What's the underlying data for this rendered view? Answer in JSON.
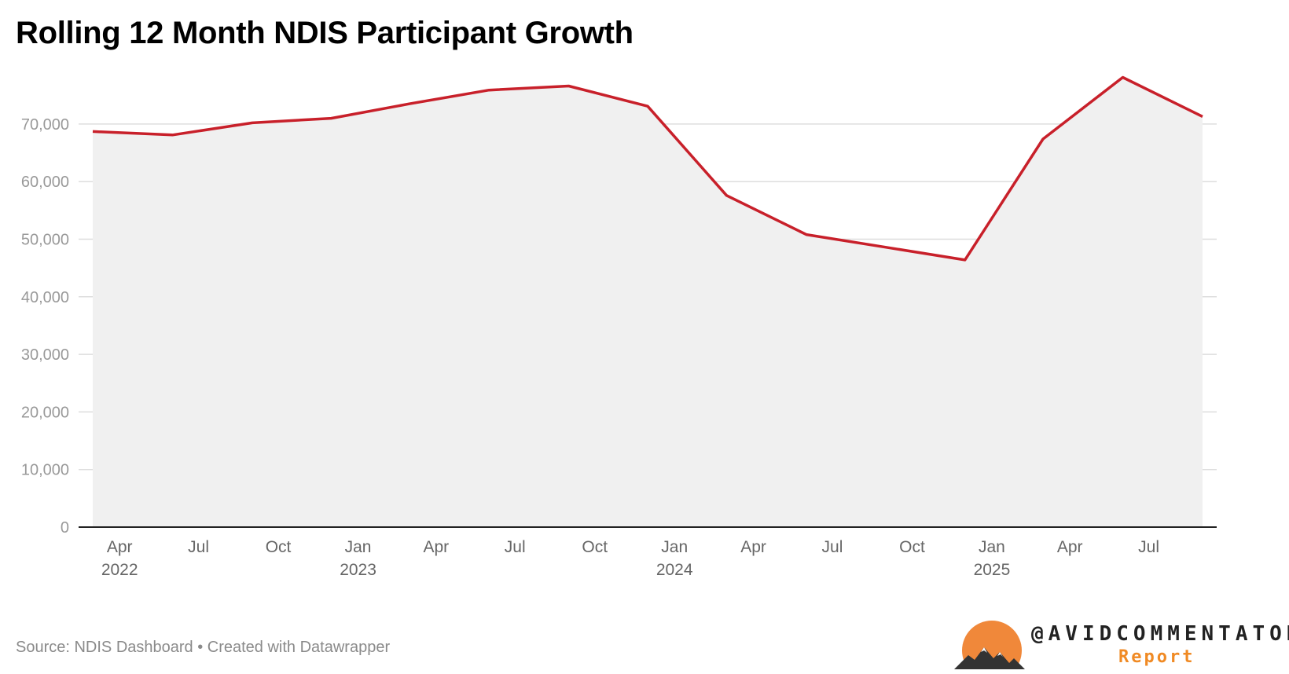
{
  "title": "Rolling 12 Month NDIS Participant Growth",
  "source": "Source: NDIS Dashboard • Created with Datawrapper",
  "brand": {
    "name": "@AVIDCOMMENTATOR",
    "sub": "Report",
    "icon": "mountain-sun-logo",
    "colors": {
      "sun": "#f0883a",
      "mountains": "#333333",
      "sub": "#f08a24"
    }
  },
  "colors": {
    "line": "#c8202a",
    "area": "#f0f0f0",
    "grid": "#dddddd",
    "axis": "#222222",
    "tick": "#999999"
  },
  "chart_data": {
    "type": "area",
    "title": "Rolling 12 Month NDIS Participant Growth",
    "xlabel": "",
    "ylabel": "",
    "ylim": [
      0,
      80000
    ],
    "yticks": [
      0,
      10000,
      20000,
      30000,
      40000,
      50000,
      60000,
      70000
    ],
    "ytick_labels": [
      "0",
      "10,000",
      "20,000",
      "30,000",
      "40,000",
      "50,000",
      "60,000",
      "70,000"
    ],
    "grid": true,
    "legend": "none",
    "xticks": [
      {
        "date": "2022-04",
        "month": "Apr",
        "year": "2022"
      },
      {
        "date": "2022-07",
        "month": "Jul",
        "year": ""
      },
      {
        "date": "2022-10",
        "month": "Oct",
        "year": ""
      },
      {
        "date": "2023-01",
        "month": "Jan",
        "year": "2023"
      },
      {
        "date": "2023-04",
        "month": "Apr",
        "year": ""
      },
      {
        "date": "2023-07",
        "month": "Jul",
        "year": ""
      },
      {
        "date": "2023-10",
        "month": "Oct",
        "year": ""
      },
      {
        "date": "2024-01",
        "month": "Jan",
        "year": "2024"
      },
      {
        "date": "2024-04",
        "month": "Apr",
        "year": ""
      },
      {
        "date": "2024-07",
        "month": "Jul",
        "year": ""
      },
      {
        "date": "2024-10",
        "month": "Oct",
        "year": ""
      },
      {
        "date": "2025-01",
        "month": "Jan",
        "year": "2025"
      },
      {
        "date": "2025-04",
        "month": "Apr",
        "year": ""
      },
      {
        "date": "2025-07",
        "month": "Jul",
        "year": ""
      }
    ],
    "series": [
      {
        "x": [
          "2022-03-01",
          "2022-06-01",
          "2022-09-01",
          "2022-12-01",
          "2023-03-01",
          "2023-06-01",
          "2023-09-01",
          "2023-12-01",
          "2024-03-01",
          "2024-06-01",
          "2024-09-01",
          "2024-12-01",
          "2025-03-01",
          "2025-06-01",
          "2025-09-01"
        ],
        "values": [
          68700,
          68100,
          70200,
          71000,
          73500,
          75900,
          76600,
          73100,
          57600,
          50800,
          48600,
          46400,
          67400,
          78100,
          71300
        ]
      }
    ]
  }
}
